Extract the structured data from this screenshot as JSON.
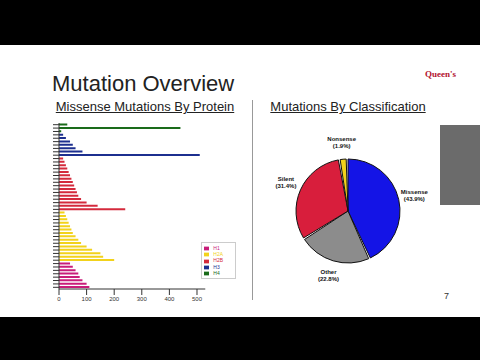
{
  "slide": {
    "title": "Mutation Overview",
    "logo": "Queen's",
    "page": "7"
  },
  "chart_data": [
    {
      "type": "bar",
      "title": "Missense Mutations By Protein",
      "orientation": "horizontal",
      "stacked": true,
      "legend": "lower right",
      "categories": [
        null,
        null,
        null,
        null,
        null,
        null,
        null,
        null,
        null,
        null,
        null,
        null,
        null,
        null,
        null,
        null,
        null,
        null,
        null,
        null,
        null,
        null,
        null,
        null,
        null,
        null,
        null,
        null,
        null,
        null,
        null,
        null,
        null,
        null,
        null,
        null,
        null,
        null,
        null,
        null,
        null,
        null,
        null,
        null,
        null,
        null,
        null,
        null,
        null
      ],
      "series": [
        {
          "name": "H4",
          "color": "#1a6b1a",
          "values": [
            30,
            440,
            8,
            null,
            null,
            null,
            null,
            null,
            null,
            null,
            null,
            null,
            null,
            null,
            null,
            null,
            null,
            null,
            null,
            null,
            null,
            null,
            null,
            null,
            null,
            null,
            null,
            null,
            null,
            null,
            null,
            null,
            null,
            null,
            null,
            null,
            null,
            null,
            null,
            null,
            null,
            null,
            null,
            null,
            null,
            null,
            null,
            null,
            null
          ]
        },
        {
          "name": "H3",
          "color": "#1c2f8f",
          "values": [
            null,
            null,
            null,
            15,
            25,
            40,
            50,
            60,
            85,
            510,
            null,
            null,
            null,
            null,
            null,
            null,
            null,
            null,
            null,
            null,
            null,
            null,
            null,
            null,
            null,
            null,
            null,
            null,
            null,
            null,
            null,
            null,
            null,
            null,
            null,
            null,
            null,
            null,
            null,
            null,
            null,
            null,
            null,
            null,
            null,
            null,
            null,
            null,
            null
          ]
        },
        {
          "name": "H2B",
          "color": "#d42a3c",
          "values": [
            null,
            null,
            null,
            null,
            null,
            null,
            null,
            null,
            null,
            null,
            15,
            20,
            25,
            30,
            35,
            40,
            45,
            50,
            55,
            60,
            65,
            70,
            80,
            100,
            140,
            240,
            null,
            null,
            null,
            null,
            null,
            null,
            null,
            null,
            null,
            null,
            null,
            null,
            null,
            null,
            null,
            null,
            null,
            null,
            null,
            null,
            null,
            null,
            null
          ]
        },
        {
          "name": "H2A",
          "color": "#f2d21b",
          "values": [
            null,
            null,
            null,
            null,
            null,
            null,
            null,
            null,
            null,
            null,
            null,
            null,
            null,
            null,
            null,
            null,
            null,
            null,
            null,
            null,
            null,
            null,
            null,
            null,
            null,
            null,
            20,
            25,
            30,
            35,
            40,
            45,
            50,
            60,
            70,
            80,
            100,
            120,
            150,
            160,
            200,
            null,
            null,
            null,
            null,
            null,
            null,
            null,
            null
          ]
        },
        {
          "name": "H1",
          "color": "#c81d7a",
          "values": [
            null,
            null,
            null,
            null,
            null,
            null,
            null,
            null,
            null,
            null,
            null,
            null,
            null,
            null,
            null,
            null,
            null,
            null,
            null,
            null,
            null,
            null,
            null,
            null,
            null,
            null,
            null,
            null,
            null,
            null,
            null,
            null,
            null,
            null,
            null,
            null,
            null,
            null,
            null,
            null,
            null,
            40,
            50,
            60,
            70,
            75,
            85,
            100,
            110
          ]
        }
      ],
      "xlim": [
        0,
        530
      ],
      "xticks": [
        0,
        100,
        200,
        300,
        400,
        500
      ]
    },
    {
      "type": "pie",
      "title": "Mutations By Classification",
      "categories": [
        "Missense",
        "Other",
        "Silent",
        "Nonsense"
      ],
      "values": [
        43.9,
        22.8,
        31.4,
        1.9
      ],
      "value_labels": [
        "(43.9%)",
        "(22.8%)",
        "(31.4%)",
        "(1.9%)"
      ],
      "colors": [
        "#1414e6",
        "#8c8c8c",
        "#d81e3c",
        "#f2d21b"
      ],
      "data_labels": true
    }
  ]
}
